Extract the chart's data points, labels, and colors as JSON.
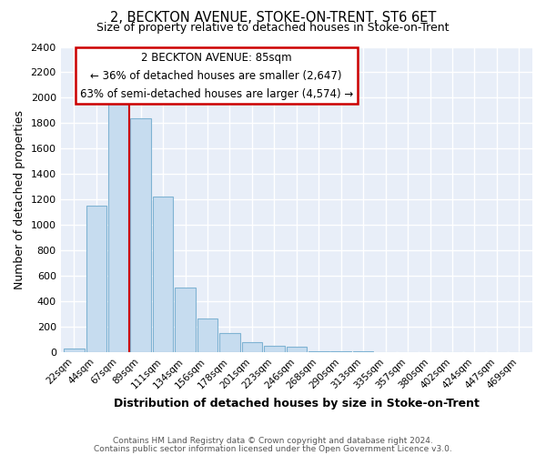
{
  "title": "2, BECKTON AVENUE, STOKE-ON-TRENT, ST6 6ET",
  "subtitle": "Size of property relative to detached houses in Stoke-on-Trent",
  "xlabel": "Distribution of detached houses by size in Stoke-on-Trent",
  "ylabel": "Number of detached properties",
  "bin_labels": [
    "22sqm",
    "44sqm",
    "67sqm",
    "89sqm",
    "111sqm",
    "134sqm",
    "156sqm",
    "178sqm",
    "201sqm",
    "223sqm",
    "246sqm",
    "268sqm",
    "290sqm",
    "313sqm",
    "335sqm",
    "357sqm",
    "380sqm",
    "402sqm",
    "424sqm",
    "447sqm",
    "469sqm"
  ],
  "bar_heights": [
    25,
    1150,
    1950,
    1840,
    1220,
    510,
    265,
    150,
    78,
    50,
    40,
    10,
    8,
    5,
    3,
    2,
    2,
    1,
    1,
    1,
    0
  ],
  "bar_color": "#c6dcef",
  "bar_edge_color": "#7fb3d3",
  "vline_color": "#cc0000",
  "annotation_title": "2 BECKTON AVENUE: 85sqm",
  "annotation_line1": "← 36% of detached houses are smaller (2,647)",
  "annotation_line2": "63% of semi-detached houses are larger (4,574) →",
  "annotation_box_color": "white",
  "annotation_box_edge": "#cc0000",
  "ylim": [
    0,
    2400
  ],
  "yticks": [
    0,
    200,
    400,
    600,
    800,
    1000,
    1200,
    1400,
    1600,
    1800,
    2000,
    2200,
    2400
  ],
  "footer1": "Contains HM Land Registry data © Crown copyright and database right 2024.",
  "footer2": "Contains public sector information licensed under the Open Government Licence v3.0.",
  "bg_color": "#ffffff",
  "plot_bg_color": "#e8eef8",
  "grid_color": "#ffffff"
}
